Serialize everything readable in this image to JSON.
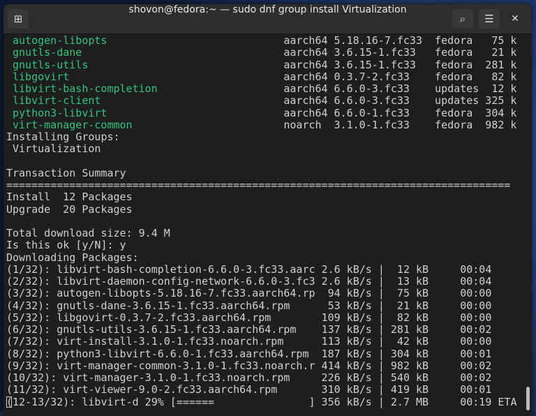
{
  "window": {
    "title": "shovon@fedora:~ — sudo dnf group install Virtualization",
    "icons": {
      "new_tab": "new-tab-icon",
      "search": "search-icon",
      "menu": "hamburger-menu-icon",
      "close": "close-icon"
    }
  },
  "colors": {
    "package_name": "#33c47f",
    "text": "#d0d0d0",
    "background": "#1e1e1e"
  },
  "packages": [
    {
      "name": "autogen-libopts",
      "rest": "aarch64 5.18.16-7.fc33  fedora   75 k"
    },
    {
      "name": "gnutls-dane",
      "rest": "aarch64 3.6.15-1.fc33   fedora   21 k"
    },
    {
      "name": "gnutls-utils",
      "rest": "aarch64 3.6.15-1.fc33   fedora  281 k"
    },
    {
      "name": "libgovirt",
      "rest": "aarch64 0.3.7-2.fc33    fedora   82 k"
    },
    {
      "name": "libvirt-bash-completion",
      "rest": "aarch64 6.6.0-3.fc33    updates  12 k"
    },
    {
      "name": "libvirt-client",
      "rest": "aarch64 6.6.0-3.fc33    updates 325 k"
    },
    {
      "name": "python3-libvirt",
      "rest": "aarch64 6.6.0-1.fc33    fedora  304 k"
    },
    {
      "name": "virt-manager-common",
      "rest": "noarch  3.1.0-1.fc33    fedora  982 k"
    }
  ],
  "lines": [
    "Installing Groups:",
    " Virtualization",
    "",
    "Transaction Summary",
    "================================================================================",
    "Install  12 Packages",
    "Upgrade  20 Packages",
    "",
    "Total download size: 9.4 M",
    "Is this ok [y/N]: y",
    "Downloading Packages:",
    "(1/32): libvirt-bash-completion-6.6.0-3.fc33.aarc 2.6 kB/s |  12 kB     00:04",
    "(2/32): libvirt-daemon-config-network-6.6.0-3.fc3 2.6 kB/s |  13 kB     00:04",
    "(3/32): autogen-libopts-5.18.16-7.fc33.aarch64.rp  94 kB/s |  75 kB     00:00",
    "(4/32): gnutls-dane-3.6.15-1.fc33.aarch64.rpm      53 kB/s |  21 kB     00:00",
    "(5/32): libgovirt-0.3.7-2.fc33.aarch64.rpm        109 kB/s |  82 kB     00:00",
    "(6/32): gnutls-utils-3.6.15-1.fc33.aarch64.rpm    137 kB/s | 281 kB     00:02",
    "(7/32): virt-install-3.1.0-1.fc33.noarch.rpm      113 kB/s |  42 kB     00:00",
    "(8/32): python3-libvirt-6.6.0-1.fc33.aarch64.rpm  187 kB/s | 304 kB     00:01",
    "(9/32): virt-manager-common-3.1.0-1.fc33.noarch.r 414 kB/s | 982 kB     00:02",
    "(10/32): virt-manager-3.1.0-1.fc33.noarch.rpm     226 kB/s | 540 kB     00:02",
    "(11/32): virt-viewer-9.0-2.fc33.aarch64.rpm       310 kB/s | 419 kB     00:01"
  ],
  "progress_line": "(12-13/32): libvirt-d 29% [======               ] 356 kB/s | 2.7 MB     00:19 ETA",
  "progress_percent": 29
}
